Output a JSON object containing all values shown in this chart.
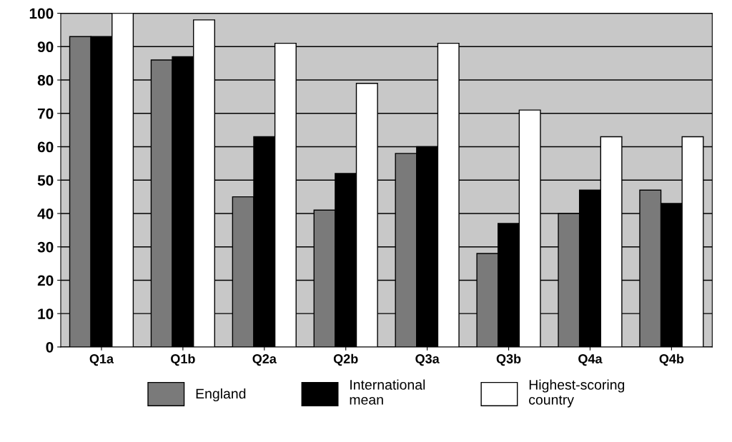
{
  "chart_data": {
    "type": "bar",
    "categories": [
      "Q1a",
      "Q1b",
      "Q2a",
      "Q2b",
      "Q3a",
      "Q3b",
      "Q4a",
      "Q4b"
    ],
    "series": [
      {
        "name": "England",
        "color": "#7a7a7a",
        "values": [
          93,
          86,
          45,
          41,
          58,
          28,
          40,
          47
        ]
      },
      {
        "name": "International\nmean",
        "color": "#000000",
        "values": [
          93,
          87,
          63,
          52,
          60,
          37,
          47,
          43
        ]
      },
      {
        "name": "Highest-scoring\ncountry",
        "color": "#ffffff",
        "values": [
          100,
          98,
          91,
          79,
          91,
          71,
          63,
          63
        ]
      }
    ],
    "ylim": [
      0,
      100
    ],
    "yticks": [
      0,
      10,
      20,
      30,
      40,
      50,
      60,
      70,
      80,
      90,
      100
    ],
    "grid": "y",
    "legend": "bottom"
  }
}
